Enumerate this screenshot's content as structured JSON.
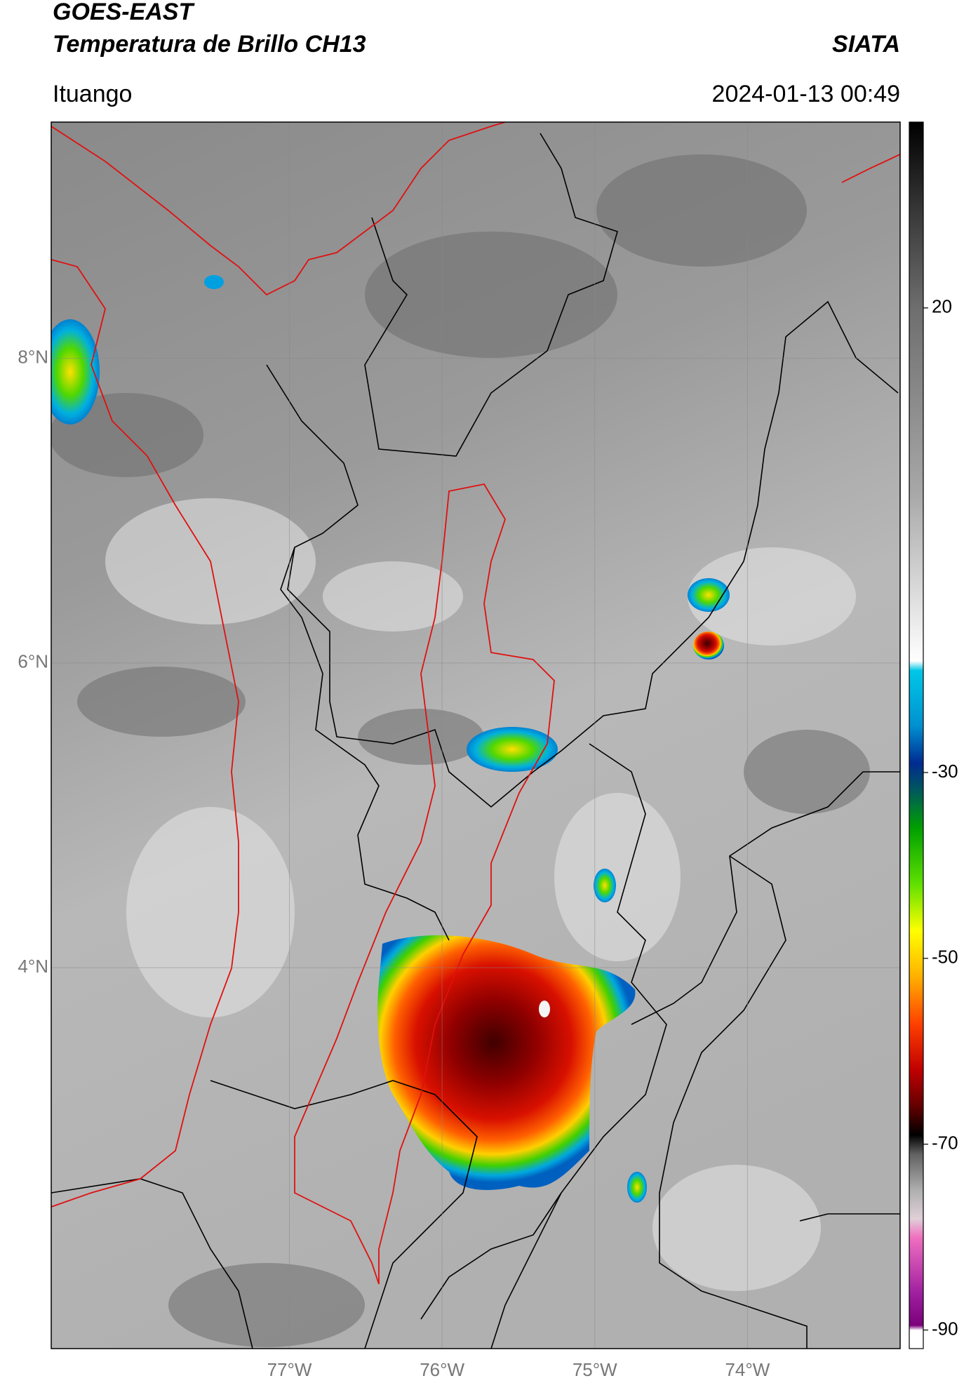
{
  "chart_data": {
    "type": "map",
    "title": "GOES-EAST",
    "subtitle": "Temperatura de Brillo CH13",
    "source": "SIATA",
    "location": "Ituango",
    "datetime": "2024-01-13 00:49",
    "xlim": [
      -78.56,
      -73.0
    ],
    "ylim": [
      1.5,
      9.55
    ],
    "xticks": [
      {
        "value": -77,
        "label": "77°W"
      },
      {
        "value": -76,
        "label": "76°W"
      },
      {
        "value": -75,
        "label": "75°W"
      },
      {
        "value": -74,
        "label": "74°W"
      }
    ],
    "yticks": [
      {
        "value": 8,
        "label": "8°N"
      },
      {
        "value": 6,
        "label": "6°N"
      },
      {
        "value": 4,
        "label": "4°N"
      }
    ],
    "grid": true,
    "colorbar": {
      "lim": [
        -92,
        40
      ],
      "ticks": [
        20,
        -30,
        -50,
        -70,
        -90
      ],
      "colormap": [
        {
          "value": 40,
          "color": "#000000"
        },
        {
          "value": 30,
          "color": "#3a3a3a"
        },
        {
          "value": 20,
          "color": "#6e6e6e"
        },
        {
          "value": 0,
          "color": "#a8a8a8"
        },
        {
          "value": -18,
          "color": "#ffffff"
        },
        {
          "value": -19,
          "color": "#00c8e6"
        },
        {
          "value": -25,
          "color": "#0090d0"
        },
        {
          "value": -29,
          "color": "#002a90"
        },
        {
          "value": -32,
          "color": "#005a5a"
        },
        {
          "value": -36,
          "color": "#00a000"
        },
        {
          "value": -42,
          "color": "#60e000"
        },
        {
          "value": -47,
          "color": "#ffff00"
        },
        {
          "value": -52,
          "color": "#ffb000"
        },
        {
          "value": -57,
          "color": "#ff4000"
        },
        {
          "value": -62,
          "color": "#c00000"
        },
        {
          "value": -66,
          "color": "#600000"
        },
        {
          "value": -69,
          "color": "#000000"
        },
        {
          "value": -71,
          "color": "#606060"
        },
        {
          "value": -75,
          "color": "#b0b0b0"
        },
        {
          "value": -78,
          "color": "#e0d0d8"
        },
        {
          "value": -80,
          "color": "#f070c0"
        },
        {
          "value": -86,
          "color": "#a020a0"
        },
        {
          "value": -89.5,
          "color": "#7a007a"
        },
        {
          "value": -90,
          "color": "#ffffff"
        },
        {
          "value": -92,
          "color": "#ffffff"
        }
      ]
    }
  }
}
